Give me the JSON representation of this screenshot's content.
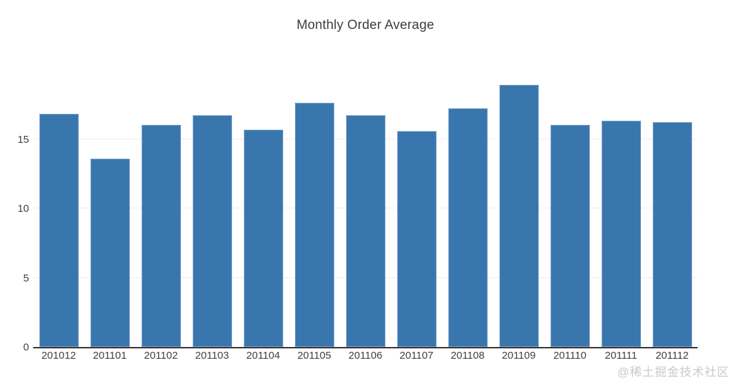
{
  "title": "Monthly Order Average",
  "watermark": {
    "text": "@稀土掘金技术社区"
  },
  "colors": {
    "bar": "#3a76ae",
    "axis": "#333333",
    "grid": "#ededed",
    "title_text": "#3d3d3d",
    "tick_text": "#3f3f3f",
    "watermark": "#c9c9c9"
  },
  "chart_data": {
    "type": "bar",
    "title": "Monthly Order Average",
    "categories": [
      "201012",
      "201101",
      "201102",
      "201103",
      "201104",
      "201105",
      "201106",
      "201107",
      "201108",
      "201109",
      "201110",
      "201111",
      "201112"
    ],
    "values": [
      16.8,
      13.6,
      16.0,
      16.7,
      15.7,
      17.6,
      16.7,
      15.6,
      17.2,
      18.9,
      16.0,
      16.3,
      16.2
    ],
    "xlabel": "",
    "ylabel": "",
    "ylim": [
      0,
      21
    ],
    "yticks": [
      0,
      5,
      10,
      15
    ],
    "grid": true,
    "legend": false
  }
}
